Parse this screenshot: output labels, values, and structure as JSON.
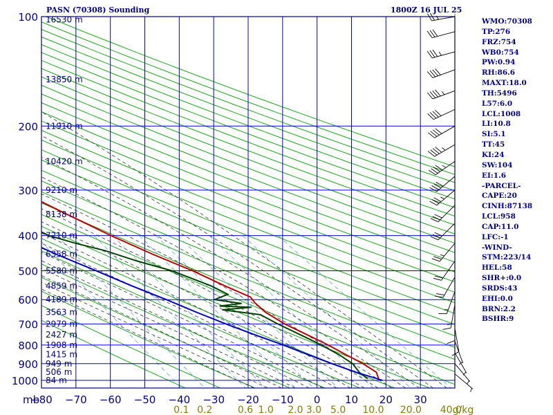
{
  "header": {
    "station_title": "PASN (70308) Sounding",
    "valid_time": "1800Z 16 JUL 25"
  },
  "indices": [
    "WMO:70308",
    "TP:276",
    "FRZ:754",
    "WB0:754",
    "PW:0.94",
    "RH:86.6",
    "MAXT:18.0",
    "TH:5496",
    "L57:6.0",
    "LCL:1008",
    "LI:10.8",
    "SI:5.1",
    "TT:45",
    "KI:24",
    "SW:104",
    "EI:1.6",
    "-PARCEL-",
    "CAPE:20",
    "CINH:87138",
    "LCL:958",
    "CAP:11.0",
    "LFC:-1",
    "-WIND-",
    "STM:223/14",
    "HEL:58",
    "SHR+:0.0",
    "SRDS:43",
    "EHI:0.0",
    "BRN:2.2",
    "BSHR:9"
  ],
  "colors": {
    "frame": "#00008b",
    "grid": "#0000cd",
    "dry_adiabat": "#00a000",
    "moist_adiabat": "#303030",
    "mixing_ratio": "#5aa0e0",
    "temperature": "#c00000",
    "dewpoint": "#004000",
    "parcel": "#0000c0",
    "wind": "#000000",
    "mixing_ratio_label": "#808000"
  },
  "chart_data": {
    "type": "skew-t log-p sounding",
    "x_axis_unit_label": "mb",
    "pressure_levels": [
      100,
      200,
      300,
      400,
      500,
      600,
      700,
      800,
      900,
      1000
    ],
    "pressure_range": [
      100,
      1050
    ],
    "temperature_ticks": [
      -80,
      -70,
      -60,
      -50,
      -40,
      -30,
      -20,
      -10,
      0,
      10,
      20,
      30
    ],
    "temperature_range": [
      -80,
      40
    ],
    "skew_degrees_per_decade": 80,
    "height_labels": [
      {
        "p": 102,
        "label": "16530 m"
      },
      {
        "p": 149,
        "label": "13850 m"
      },
      {
        "p": 200,
        "label": "11910 m"
      },
      {
        "p": 250,
        "label": "10420 m"
      },
      {
        "p": 300,
        "label": "9210 m"
      },
      {
        "p": 350,
        "label": "8138 m"
      },
      {
        "p": 400,
        "label": "7210 m"
      },
      {
        "p": 450,
        "label": "6358 m"
      },
      {
        "p": 500,
        "label": "5580 m"
      },
      {
        "p": 550,
        "label": "4859 m"
      },
      {
        "p": 600,
        "label": "4189 m"
      },
      {
        "p": 650,
        "label": "3563 m"
      },
      {
        "p": 700,
        "label": "2979 m"
      },
      {
        "p": 750,
        "label": "2427 m"
      },
      {
        "p": 800,
        "label": "1908 m"
      },
      {
        "p": 850,
        "label": "1415 m"
      },
      {
        "p": 900,
        "label": "949 m"
      },
      {
        "p": 950,
        "label": "506 m"
      },
      {
        "p": 1000,
        "label": "84 m"
      }
    ],
    "mixing_ratio_labels": [
      "0.1",
      "0.2",
      "0.6",
      "1.0",
      "2.0",
      "3.0",
      "5.0",
      "10.0",
      "20.0",
      "40.0",
      "g/kg"
    ],
    "mixing_ratio_values": [
      0.1,
      0.2,
      0.6,
      1.0,
      2.0,
      3.0,
      5.0,
      10.0,
      20.0,
      40.0
    ],
    "dry_adiabats_K": [
      230,
      240,
      250,
      260,
      270,
      280,
      290,
      300,
      310,
      320,
      330,
      340,
      350,
      360,
      370,
      380,
      390,
      400,
      410,
      420,
      430,
      440,
      450,
      460,
      470,
      480,
      490,
      500,
      510,
      520,
      530
    ],
    "moist_adiabats_C": [
      -20,
      -16,
      -12,
      -8,
      -4,
      0,
      4,
      8,
      12,
      16,
      20,
      24,
      28,
      32,
      36
    ],
    "series": [
      {
        "name": "Temperature",
        "points": [
          [
            100,
            -71
          ],
          [
            142,
            -57
          ],
          [
            200,
            -53
          ],
          [
            240,
            -55
          ],
          [
            270,
            -51
          ],
          [
            300,
            -45
          ],
          [
            350,
            -36
          ],
          [
            400,
            -28
          ],
          [
            450,
            -20
          ],
          [
            500,
            -12
          ],
          [
            550,
            -6
          ],
          [
            590,
            -1
          ],
          [
            612,
            -1
          ],
          [
            650,
            0
          ],
          [
            700,
            3
          ],
          [
            760,
            8
          ],
          [
            800,
            11
          ],
          [
            850,
            14
          ],
          [
            900,
            17
          ],
          [
            950,
            19
          ],
          [
            1000,
            18
          ]
        ]
      },
      {
        "name": "Dewpoint",
        "points": [
          [
            150,
            -91
          ],
          [
            200,
            -88
          ],
          [
            250,
            -72
          ],
          [
            262,
            -66
          ],
          [
            300,
            -62
          ],
          [
            350,
            -54
          ],
          [
            400,
            -46
          ],
          [
            420,
            -40
          ],
          [
            440,
            -33
          ],
          [
            470,
            -26
          ],
          [
            500,
            -18
          ],
          [
            550,
            -10
          ],
          [
            580,
            -7
          ],
          [
            600,
            -12
          ],
          [
            615,
            -5
          ],
          [
            625,
            -12
          ],
          [
            630,
            -3
          ],
          [
            640,
            -12
          ],
          [
            660,
            -2
          ],
          [
            700,
            1
          ],
          [
            760,
            6
          ],
          [
            800,
            9
          ],
          [
            850,
            12
          ],
          [
            900,
            14
          ],
          [
            950,
            14
          ],
          [
            990,
            15
          ]
        ]
      },
      {
        "name": "Parcel",
        "points": [
          [
            1000,
            19
          ],
          [
            950,
            13
          ],
          [
            900,
            8
          ],
          [
            850,
            3
          ],
          [
            800,
            -2
          ],
          [
            750,
            -8
          ],
          [
            700,
            -14
          ],
          [
            650,
            -20
          ],
          [
            600,
            -26
          ],
          [
            550,
            -33
          ],
          [
            500,
            -40
          ],
          [
            450,
            -48
          ],
          [
            400,
            -56
          ],
          [
            350,
            -66
          ],
          [
            300,
            -76
          ],
          [
            250,
            -88
          ],
          [
            220,
            -96
          ]
        ]
      }
    ],
    "wind_barbs": [
      {
        "p": 100,
        "dir": 260,
        "spd": 25
      },
      {
        "p": 110,
        "dir": 255,
        "spd": 30
      },
      {
        "p": 125,
        "dir": 255,
        "spd": 35
      },
      {
        "p": 140,
        "dir": 250,
        "spd": 40
      },
      {
        "p": 160,
        "dir": 250,
        "spd": 45
      },
      {
        "p": 180,
        "dir": 245,
        "spd": 40
      },
      {
        "p": 200,
        "dir": 240,
        "spd": 40
      },
      {
        "p": 225,
        "dir": 240,
        "spd": 45
      },
      {
        "p": 250,
        "dir": 235,
        "spd": 45
      },
      {
        "p": 275,
        "dir": 230,
        "spd": 40
      },
      {
        "p": 300,
        "dir": 230,
        "spd": 35
      },
      {
        "p": 330,
        "dir": 225,
        "spd": 30
      },
      {
        "p": 370,
        "dir": 225,
        "spd": 30
      },
      {
        "p": 420,
        "dir": 220,
        "spd": 25
      },
      {
        "p": 470,
        "dir": 215,
        "spd": 20
      },
      {
        "p": 520,
        "dir": 210,
        "spd": 20
      },
      {
        "p": 570,
        "dir": 200,
        "spd": 15
      },
      {
        "p": 620,
        "dir": 190,
        "spd": 15
      },
      {
        "p": 670,
        "dir": 180,
        "spd": 10
      },
      {
        "p": 720,
        "dir": 170,
        "spd": 10
      },
      {
        "p": 780,
        "dir": 160,
        "spd": 5
      },
      {
        "p": 840,
        "dir": 150,
        "spd": 5
      },
      {
        "p": 900,
        "dir": 140,
        "spd": 5
      },
      {
        "p": 960,
        "dir": 130,
        "spd": 5
      }
    ]
  }
}
